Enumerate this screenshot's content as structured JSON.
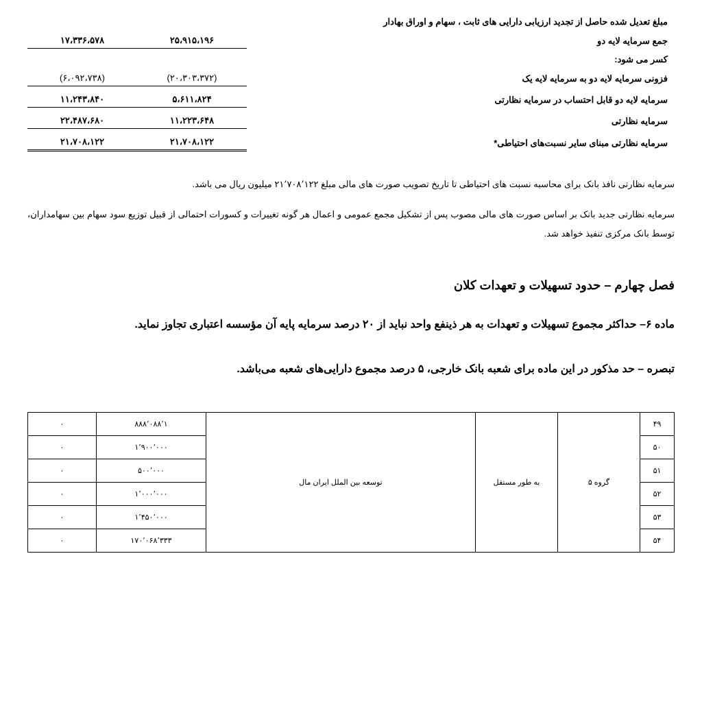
{
  "topTable": {
    "rows": [
      {
        "label": "مبلغ تعدیل شده حاصل از تجدید ارزیابی دارایی های ثابت ، سهام و اوراق بهادار",
        "v1": "",
        "v2": "",
        "cls": ""
      },
      {
        "label": "جمع سرمایه لایه دو",
        "v1": "۲۵،۹۱۵،۱۹۶",
        "v2": "۱۷،۳۳۶،۵۷۸",
        "cls": "underline bold"
      },
      {
        "label": "کسر می شود:",
        "v1": "",
        "v2": "",
        "cls": "bold"
      },
      {
        "label": "فزونی سرمایه لایه دو به سرمایه لایه یک",
        "v1": "(۲۰،۳۰۳،۳۷۲)",
        "v2": "(۶،۰۹۲،۷۳۸)",
        "cls": "underline"
      },
      {
        "label": "سرمایه لایه دو قابل احتساب در سرمایه نظارتی",
        "v1": "۵،۶۱۱،۸۲۴",
        "v2": "۱۱،۲۴۳،۸۴۰",
        "cls": "underline bold"
      },
      {
        "label": "سرمایه نظارتی",
        "v1": "۱۱،۲۲۳،۶۴۸",
        "v2": "۲۲،۴۸۷،۶۸۰",
        "cls": "underline bold"
      },
      {
        "label": "سرمایه نظارتی مبنای سایر نسبت‌های احتیاطی*",
        "v1": "۲۱،۷۰۸،۱۲۲",
        "v2": "۲۱،۷۰۸،۱۲۲",
        "cls": "double-underline bold"
      }
    ]
  },
  "para1": "سرمایه نظارتی نافذ بانک برای محاسبه نسبت های احتیاطی تا تاریخ تصویب صورت های مالی مبلغ ۲۱٬۷۰۸٬۱۲۲ میلیون ریال می باشد.",
  "para2": "سرمایه نظارتی جدید بانک بر اساس صورت های مالی مصوب پس از تشکیل مجمع عمومی و اعمال هر گونه تغییرات و کسورات احتمالی از قبیل توزیع سود سهام بین سهامداران، توسط بانک مرکزی تنفیذ خواهد شد.",
  "sectionTitle": "فصل چهارم – حدود تسهیلات و تعهدات کلان",
  "article6": "ماده ۶– حداکثر مجموع تسهیلات و تعهدات به هر ذینفع واحد نباید از ۲۰ درصد سرمایه پایه آن مؤسسه اعتباری تجاوز نماید.",
  "note": "تبصره – حد مذکور در این ماده برای شعبه بانک خارجی، ۵ درصد مجموع دارایی‌های شعبه می‌باشد.",
  "bottomTable": {
    "group": "گروه ۵",
    "status": "به طور مستقل",
    "company": "توسعه بین الملل ایران مال",
    "rows": [
      {
        "idx": "۴۹",
        "n1": "۸۸۸٬۰۸۸٬۱",
        "n2": "۰"
      },
      {
        "idx": "۵۰",
        "n1": "۱٬۹۰۰٬۰۰۰",
        "n2": "۰"
      },
      {
        "idx": "۵۱",
        "n1": "۵۰۰٬۰۰۰",
        "n2": "۰"
      },
      {
        "idx": "۵۲",
        "n1": "۱٬۰۰۰٬۰۰۰",
        "n2": "۰"
      },
      {
        "idx": "۵۳",
        "n1": "۱٬۴۵۰٬۰۰۰",
        "n2": "۰"
      },
      {
        "idx": "۵۴",
        "n1": "۱۷۰٬۰۶۸٬۳۳۳",
        "n2": "۰"
      }
    ]
  }
}
